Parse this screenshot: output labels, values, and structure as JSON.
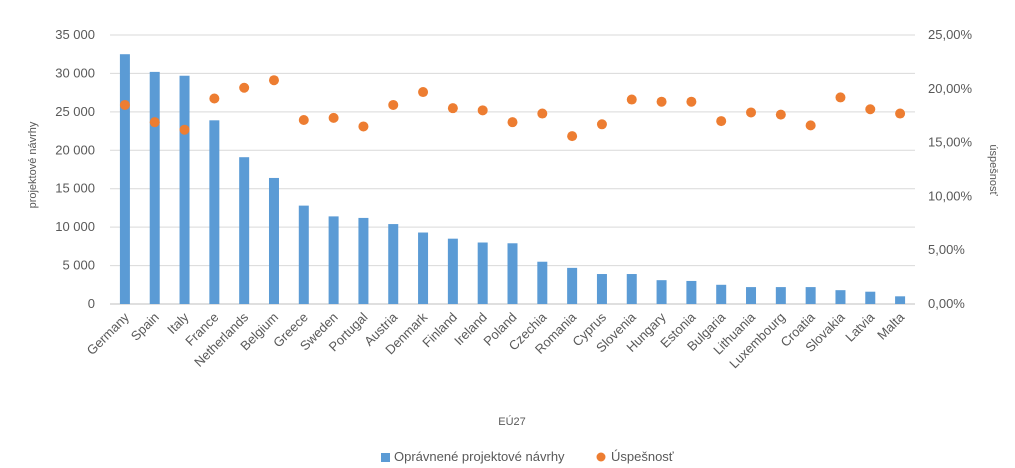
{
  "chart_data": {
    "type": "bar",
    "categories": [
      "Germany",
      "Spain",
      "Italy",
      "France",
      "Netherlands",
      "Belgium",
      "Greece",
      "Sweden",
      "Portugal",
      "Austria",
      "Denmark",
      "Finland",
      "Ireland",
      "Poland",
      "Czechia",
      "Romania",
      "Cyprus",
      "Slovenia",
      "Hungary",
      "Estonia",
      "Bulgaria",
      "Lithuania",
      "Luxembourg",
      "Croatia",
      "Slovakia",
      "Latvia",
      "Malta"
    ],
    "series": [
      {
        "name": "Oprávnené projektové návrhy",
        "type": "bar",
        "axis": "left",
        "color": "#5b9bd5",
        "values": [
          32500,
          30200,
          29700,
          23900,
          19100,
          16400,
          12800,
          11400,
          11200,
          10400,
          9300,
          8500,
          8000,
          7900,
          5500,
          4700,
          3900,
          3900,
          3100,
          3000,
          2500,
          2200,
          2200,
          2200,
          1800,
          1600,
          1000
        ]
      },
      {
        "name": "Úspešnosť",
        "type": "scatter",
        "axis": "right",
        "color": "#ed7d31",
        "values": [
          18.5,
          16.9,
          16.2,
          19.1,
          20.1,
          20.8,
          17.1,
          17.3,
          16.5,
          18.5,
          19.7,
          18.2,
          18.0,
          16.9,
          17.7,
          15.6,
          16.7,
          19.0,
          18.8,
          18.8,
          17.0,
          17.8,
          17.6,
          16.6,
          19.2,
          18.1,
          17.7
        ]
      }
    ],
    "xlabel": "EÚ27",
    "ylabel": "projektové návrhy",
    "y2label": "úspešnosť",
    "ylim": [
      0,
      35000
    ],
    "y2lim": [
      0,
      25
    ],
    "yticks": [
      "0",
      "5 000",
      "10 000",
      "15 000",
      "20 000",
      "25 000",
      "30 000",
      "35 000"
    ],
    "y2ticks": [
      "0,00%",
      "5,00%",
      "10,00%",
      "15,00%",
      "20,00%",
      "25,00%"
    ],
    "grid": true,
    "legend_position": "bottom"
  }
}
